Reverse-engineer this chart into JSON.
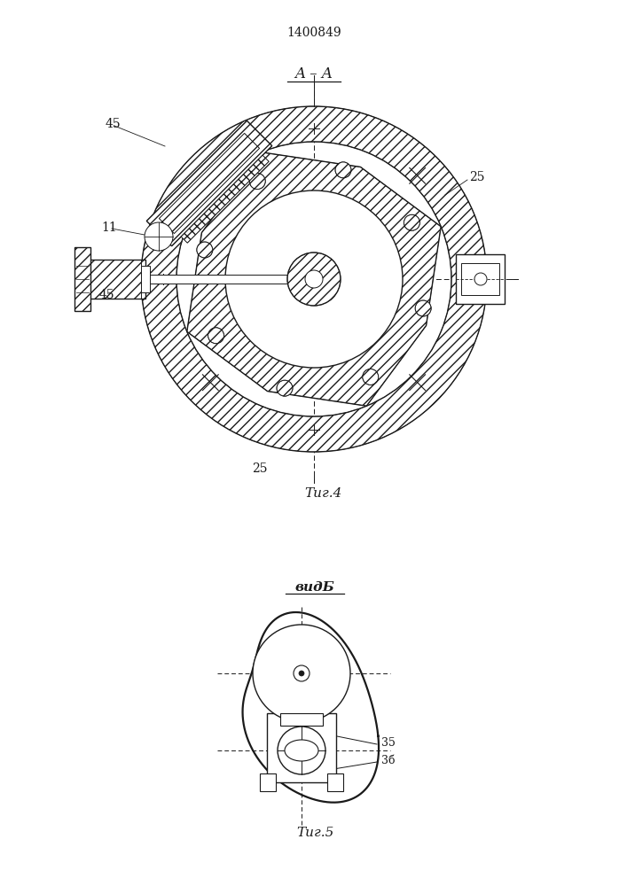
{
  "title": "1400849",
  "fig4_label": "A – A",
  "fig4_caption": "Τиг.4",
  "fig5_label": "видБ",
  "fig5_caption": "Τиг.5",
  "label_25_right": "25",
  "label_25_bottom": "25",
  "label_45_top": "45",
  "label_45_mid": "45",
  "label_11": "11",
  "label_35": "35",
  "label_36": "3б",
  "bg_color": "#ffffff",
  "line_color": "#1a1a1a"
}
